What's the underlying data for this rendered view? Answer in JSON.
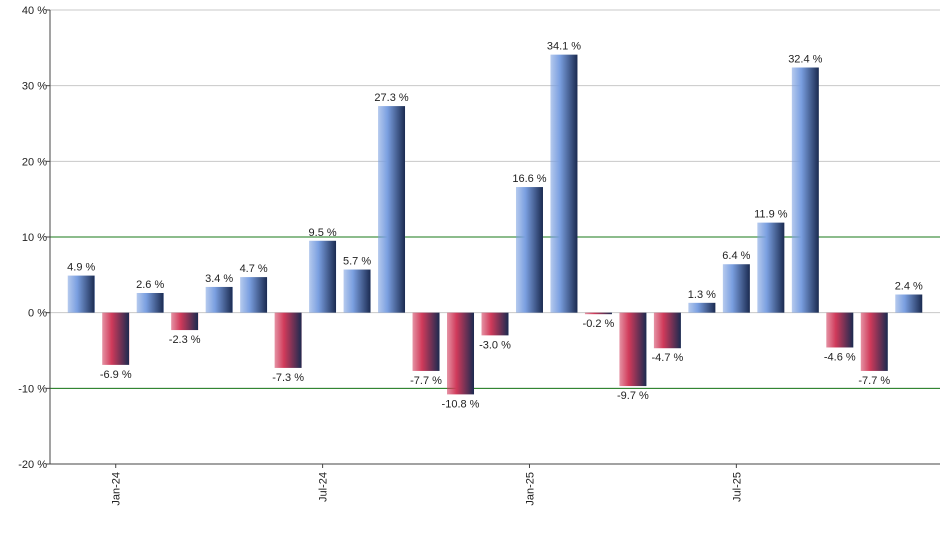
{
  "chart_data": {
    "type": "bar",
    "categories": [
      null,
      "Jan-24",
      null,
      null,
      null,
      null,
      null,
      "Jul-24",
      null,
      null,
      null,
      null,
      null,
      "Jan-25",
      null,
      null,
      null,
      null,
      null,
      "Jul-25",
      null,
      null,
      null,
      null,
      null
    ],
    "values": [
      4.9,
      -6.9,
      2.6,
      -2.3,
      3.4,
      4.7,
      -7.3,
      9.5,
      5.7,
      27.3,
      -7.7,
      -10.8,
      -3.0,
      16.6,
      34.1,
      -0.2,
      -9.7,
      -4.7,
      1.3,
      6.4,
      11.9,
      32.4,
      -4.6,
      -7.7,
      2.4
    ],
    "value_labels": [
      "4.9 %",
      "-6.9 %",
      "2.6 %",
      "-2.3 %",
      "3.4 %",
      "4.7 %",
      "-7.3 %",
      "9.5 %",
      "5.7 %",
      "27.3 %",
      "-7.7 %",
      "-10.8 %",
      "-3.0 %",
      "16.6 %",
      "34.1 %",
      "-0.2 %",
      "-9.7 %",
      "-4.7 %",
      "1.3 %",
      "6.4 %",
      "11.9 %",
      "32.4 %",
      "-4.6 %",
      "-7.7 %",
      "2.4 %"
    ],
    "positive_color": "#7a9fe0",
    "negative_color": "#d03a5a",
    "ylim": [
      -20,
      40
    ],
    "yticks": [
      {
        "value": -20,
        "label": "-20 %"
      },
      {
        "value": -10,
        "label": "-10 %"
      },
      {
        "value": 0,
        "label": "0 %"
      },
      {
        "value": 10,
        "label": "10 %"
      },
      {
        "value": 20,
        "label": "20 %"
      },
      {
        "value": 30,
        "label": "30 %"
      },
      {
        "value": 40,
        "label": "40 %"
      }
    ],
    "grid": true,
    "reference_lines": [
      10,
      -10
    ],
    "reference_color": "#1a7a1a"
  }
}
